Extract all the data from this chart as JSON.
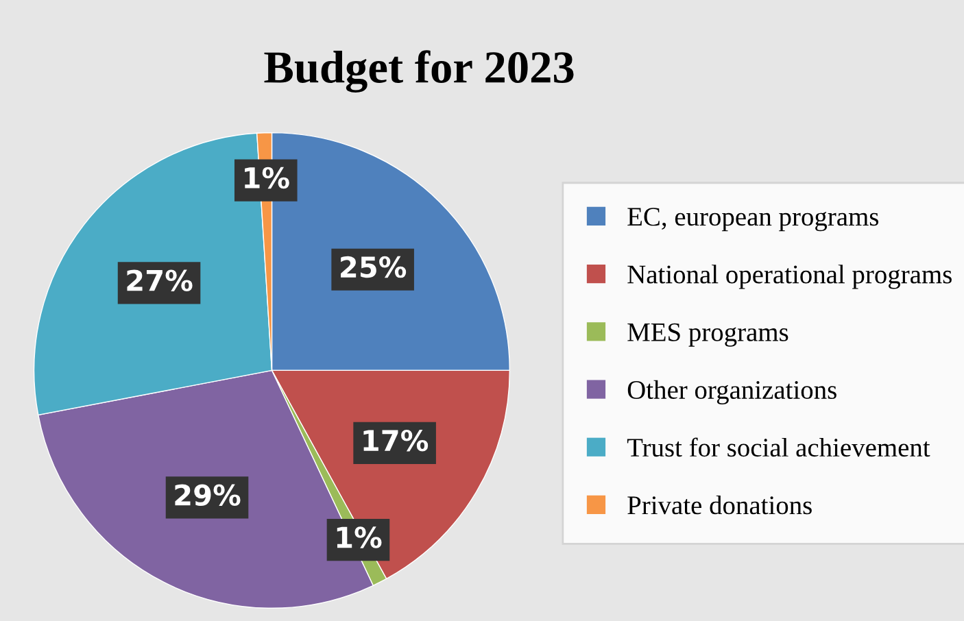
{
  "chart_data": {
    "type": "pie",
    "title": "Budget for 2023",
    "categories": [
      "EC, european programs",
      "National operational programs",
      "MES programs",
      "Other organizations",
      "Trust for social achievement",
      "Private donations"
    ],
    "values": [
      25,
      17,
      1,
      29,
      27,
      1
    ],
    "colors": [
      "#4f81bd",
      "#c0504d",
      "#9bbb59",
      "#8064a2",
      "#4bacc6",
      "#f79646"
    ],
    "value_labels": [
      "25%",
      "17%",
      "1%",
      "29%",
      "27%",
      "1%"
    ],
    "legend": "right"
  }
}
